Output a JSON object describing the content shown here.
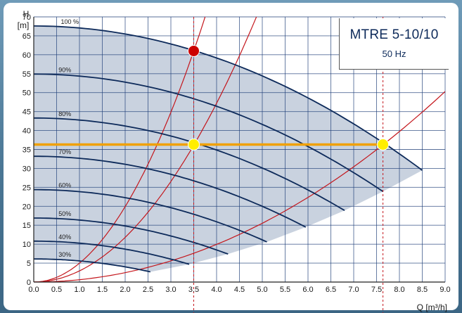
{
  "chart_data": {
    "type": "line",
    "title": "MTRE 5-10/10",
    "subtitle": "50 Hz",
    "ylabel_symbol": "H",
    "ylabel_unit": "[m]",
    "xlabel": "Q [m³/h]",
    "xlim": [
      0,
      9
    ],
    "ylim": [
      0,
      70
    ],
    "x_ticks": [
      "0.0",
      "0.5",
      "1.0",
      "1.5",
      "2.0",
      "2.5",
      "3.0",
      "3.5",
      "4.0",
      "4.5",
      "5.0",
      "5.5",
      "6.0",
      "6.5",
      "7.0",
      "7.5",
      "8.0",
      "8.5",
      "9.0"
    ],
    "y_ticks": [
      "0",
      "5",
      "10",
      "15",
      "20",
      "25",
      "30",
      "35",
      "40",
      "45",
      "50",
      "55",
      "60",
      "65",
      "70"
    ],
    "grid": true,
    "operating_area_color": "#c9d2df",
    "speed_curves": [
      {
        "name": "100 %",
        "h0": 67.6,
        "x_end": 8.5,
        "y_end": 29.5
      },
      {
        "name": "90%",
        "h0": 54.9,
        "x_end": 7.64,
        "y_end": 23.9
      },
      {
        "name": "80%",
        "h0": 43.3,
        "x_end": 6.8,
        "y_end": 18.9
      },
      {
        "name": "70%",
        "h0": 33.2,
        "x_end": 5.95,
        "y_end": 14.5
      },
      {
        "name": "60%",
        "h0": 24.4,
        "x_end": 5.1,
        "y_end": 10.6
      },
      {
        "name": "50%",
        "h0": 16.9,
        "x_end": 4.25,
        "y_end": 7.4
      },
      {
        "name": "40%",
        "h0": 10.8,
        "x_end": 3.4,
        "y_end": 4.7
      },
      {
        "name": "30%",
        "h0": 6.1,
        "x_end": 2.55,
        "y_end": 2.7
      }
    ],
    "system_curves": [
      {
        "k": 4.98
      },
      {
        "k": 2.95
      },
      {
        "k": 0.621
      }
    ],
    "duty_line": {
      "y": 36.3,
      "x_start": 0,
      "x_end": 7.64,
      "color": "#f0a000"
    },
    "duty_points": [
      {
        "x": 3.5,
        "y": 36.3,
        "color": "#ffee00"
      },
      {
        "x": 7.64,
        "y": 36.3,
        "color": "#ffee00"
      },
      {
        "x": 3.5,
        "y": 61.0,
        "color": "#cc0000"
      }
    ],
    "dashed_markers_x": [
      3.5,
      7.64
    ],
    "colors": {
      "curve": "#0d2a5a",
      "system": "#c4161c",
      "grid": "#1f3f78"
    }
  }
}
